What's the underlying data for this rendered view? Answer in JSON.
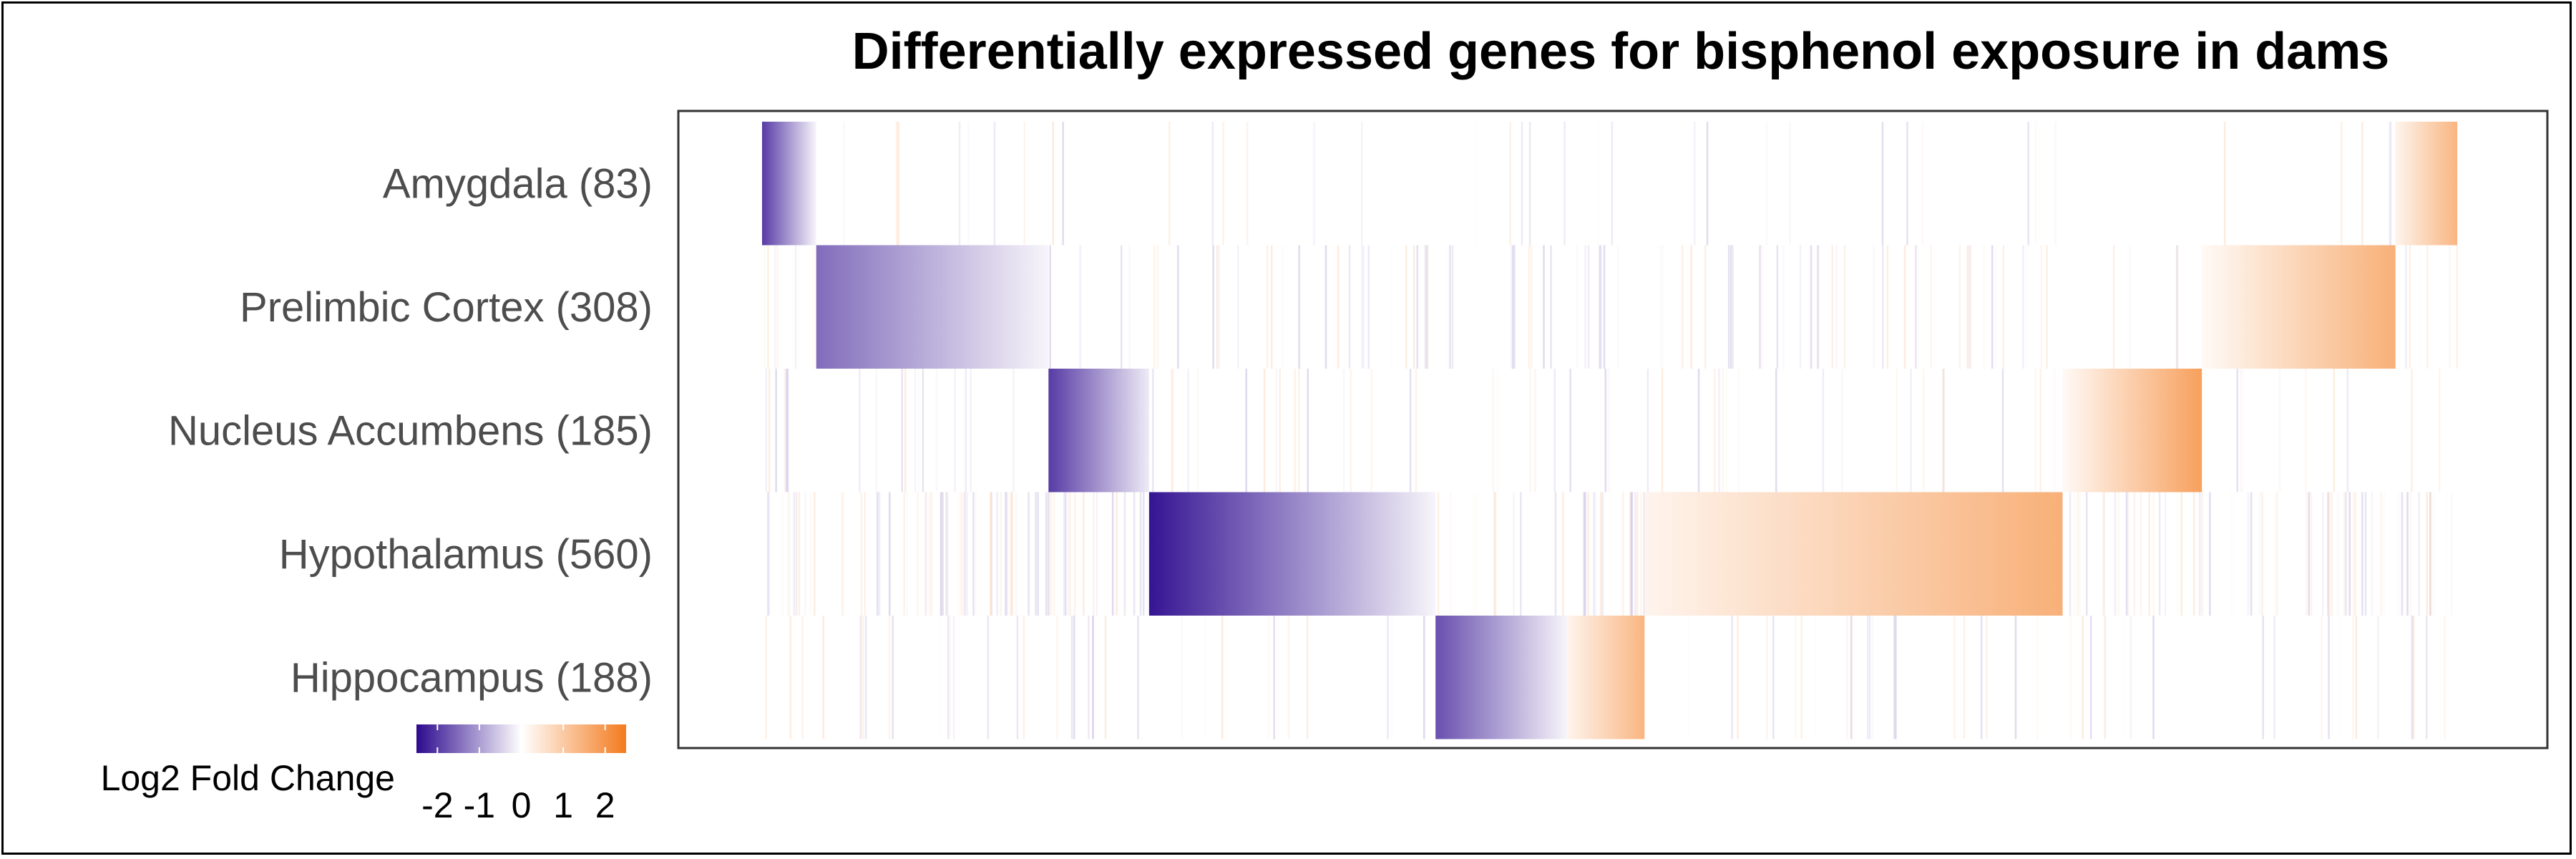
{
  "chart_data": {
    "type": "heatmap",
    "title": "Differentially expressed genes for bisphenol exposure in dams",
    "rows": [
      {
        "name": "Amygdala",
        "count": 83,
        "label": "Amygdala (83)"
      },
      {
        "name": "Prelimbic Cortex",
        "count": 308,
        "label": "Prelimbic Cortex (308)"
      },
      {
        "name": "Nucleus Accumbens",
        "count": 185,
        "label": "Nucleus Accumbens (185)"
      },
      {
        "name": "Hypothalamus",
        "count": 560,
        "label": "Hypothalamus (560)"
      },
      {
        "name": "Hippocampus",
        "count": 188,
        "label": "Hippocampus (188)"
      }
    ],
    "x_gene_index_range": [
      0,
      1100
    ],
    "blocks": [
      {
        "row": 0,
        "from": 0,
        "to": 35,
        "lfc_from": -2.0,
        "lfc_to": -0.1
      },
      {
        "row": 0,
        "from": 1055,
        "to": 1095,
        "lfc_from": 0.2,
        "lfc_to": 1.4
      },
      {
        "row": 1,
        "from": 35,
        "to": 185,
        "lfc_from": -1.5,
        "lfc_to": -0.1
      },
      {
        "row": 1,
        "from": 930,
        "to": 1055,
        "lfc_from": 0.1,
        "lfc_to": 1.5
      },
      {
        "row": 2,
        "from": 185,
        "to": 250,
        "lfc_from": -2.0,
        "lfc_to": -0.2
      },
      {
        "row": 2,
        "from": 840,
        "to": 930,
        "lfc_from": 0.1,
        "lfc_to": 1.8
      },
      {
        "row": 3,
        "from": 250,
        "to": 435,
        "lfc_from": -2.4,
        "lfc_to": -0.1
      },
      {
        "row": 3,
        "from": 570,
        "to": 840,
        "lfc_from": 0.2,
        "lfc_to": 1.5
      },
      {
        "row": 4,
        "from": 435,
        "to": 520,
        "lfc_from": -1.8,
        "lfc_to": -0.1
      },
      {
        "row": 4,
        "from": 520,
        "to": 570,
        "lfc_from": 0.2,
        "lfc_to": 1.4
      }
    ],
    "legend": {
      "title": "Log2 Fold Change",
      "ticks": [
        -2,
        -1,
        0,
        1,
        2
      ],
      "tick_labels": [
        "-2",
        "-1",
        "0",
        "1",
        "2"
      ],
      "range": [
        -2.5,
        2.5
      ],
      "placement": "bottom-left",
      "colors": {
        "low": "#2d0a8e",
        "mid": "#ffffff",
        "high": "#f47b1e"
      }
    },
    "grid": false
  }
}
